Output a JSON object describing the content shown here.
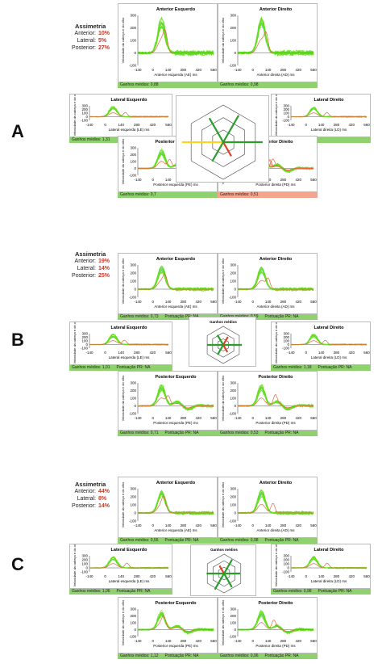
{
  "panels": [
    {
      "label": "A",
      "asym": {
        "title": "Assimetria",
        "rows": [
          {
            "label": "Anterior:",
            "value": "10%"
          },
          {
            "label": "Lateral:",
            "value": "5%"
          },
          {
            "label": "Posterior:",
            "value": "27%"
          }
        ]
      },
      "plots": {
        "ae": {
          "title": "Anterior Esquerdo",
          "xlabel": "Anterior esquerda (AE) ms",
          "footer": "Ganhos médios: 0,88",
          "footer2": ""
        },
        "ad": {
          "title": "Anterior Direito",
          "xlabel": "Anterior direita (AD) ms",
          "footer": "Ganhos médios: 0,98",
          "footer2": ""
        },
        "le": {
          "title": "Lateral Esquerdo",
          "xlabel": "Lateral esquerda (LE) ms",
          "footer": "Ganhos médios: 1,31",
          "footer2": ""
        },
        "ld": {
          "title": "Lateral Direito",
          "xlabel": "Lateral direita (LD) ms",
          "footer": "Ganhos médios: 1,25",
          "footer2": ""
        },
        "pe": {
          "title": "Posterior Esquerdo",
          "xlabel": "Posterior esquerda (PE) ms",
          "footer": "Ganhos médios: 0,7",
          "footer2": ""
        },
        "pd": {
          "title": "Posterior Direito",
          "xlabel": "Posterior direita (PD) ms",
          "footer": "Ganhos médios: 0,51",
          "footer2": ""
        }
      }
    },
    {
      "label": "B",
      "asym": {
        "title": "Assimetria",
        "rows": [
          {
            "label": "Anterior:",
            "value": "19%"
          },
          {
            "label": "Lateral:",
            "value": "14%"
          },
          {
            "label": "Posterior:",
            "value": "25%"
          }
        ]
      },
      "center_title": "Ganhos médios",
      "plots": {
        "ae": {
          "title": "Anterior Esquerdo",
          "xlabel": "Anterior esquerda (AE) ms",
          "footer": "Ganhos médios: 0,73",
          "footer2": "Pontuação PR: NA"
        },
        "ad": {
          "title": "Anterior Direito",
          "xlabel": "Anterior direita (AD) ms",
          "footer": "Ganhos médios: 0,59",
          "footer2": "Pontuação PR: NA"
        },
        "le": {
          "title": "Lateral Esquerdo",
          "xlabel": "Lateral esquerda (LE) ms",
          "footer": "Ganhos médios: 1,01",
          "footer2": "Pontuação PR: NA"
        },
        "ld": {
          "title": "Lateral Direito",
          "xlabel": "Lateral direita (LD) ms",
          "footer": "Ganhos médios: 1,18",
          "footer2": "Pontuação PR: NA"
        },
        "pe": {
          "title": "Posterior Esquerdo",
          "xlabel": "Posterior esquerda (PE) ms",
          "footer": "Ganhos médios: 0,71",
          "footer2": "Pontuação PR: NA"
        },
        "pd": {
          "title": "Posterior Direito",
          "xlabel": "Posterior direita (PD) ms",
          "footer": "Ganhos médios: 0,53",
          "footer2": "Pontuação PR: NA"
        }
      }
    },
    {
      "label": "C",
      "asym": {
        "title": "Assimetria",
        "rows": [
          {
            "label": "Anterior:",
            "value": "44%"
          },
          {
            "label": "Lateral:",
            "value": "8%"
          },
          {
            "label": "Posterior:",
            "value": "14%"
          }
        ]
      },
      "center_title": "Ganhos médios",
      "plots": {
        "ae": {
          "title": "Anterior Esquerdo",
          "xlabel": "Anterior esquerda (AE) ms",
          "footer": "Ganhos médios: 0,55",
          "footer2": "Pontuação PR: NA"
        },
        "ad": {
          "title": "Anterior Direito",
          "xlabel": "Anterior direita (AD) ms",
          "footer": "Ganhos médios: 0,98",
          "footer2": "Pontuação PR: NA"
        },
        "le": {
          "title": "Lateral Esquerdo",
          "xlabel": "Lateral esquerda (LE) ms",
          "footer": "Ganhos médios: 1,06",
          "footer2": "Pontuação PR: NA"
        },
        "ld": {
          "title": "Lateral Direito",
          "xlabel": "Lateral direita (LD) ms",
          "footer": "Ganhos médios: 0,98",
          "footer2": "Pontuação PR: NA"
        },
        "pe": {
          "title": "Posterior Esquerdo",
          "xlabel": "Posterior esquerda (PE) ms",
          "footer": "Ganhos médios: 1,12",
          "footer2": "Pontuação PR: NA"
        },
        "pd": {
          "title": "Posterior Direito",
          "xlabel": "Posterior direita (PD) ms",
          "footer": "Ganhos médios: 0,96",
          "footer2": "Pontuação PR: NA"
        }
      }
    }
  ],
  "axes": {
    "ylabel": "Velocidade da cabeça e do olho",
    "yticks": [
      "300",
      "200",
      "100",
      "0",
      "-100"
    ],
    "xticks": [
      "-140",
      "0",
      "140",
      "280",
      "420",
      "560"
    ]
  },
  "colors": {
    "trace": "#66dd22",
    "red_trace": "#e8663a",
    "blue_trace": "#66ccee",
    "gain_green": "#2a9d2a",
    "gain_red": "#d9432a",
    "gain_yellow": "#ffd21f",
    "footer_ok": "#8fd16e",
    "footer_bad": "#f4a58d"
  },
  "chart_data": {
    "type": "line",
    "xlabel": "ms",
    "ylabel": "Velocidade da cabeça e do olho",
    "xlim": [
      -140,
      560
    ],
    "ylim": [
      -100,
      300
    ],
    "mean_gains": {
      "A": {
        "AE": 0.88,
        "AD": 0.98,
        "LE": 1.31,
        "LD": 1.25,
        "PE": 0.7,
        "PD": 0.51
      },
      "B": {
        "AE": 0.73,
        "AD": 0.59,
        "LE": 1.01,
        "LD": 1.18,
        "PE": 0.71,
        "PD": 0.53
      },
      "C": {
        "AE": 0.55,
        "AD": 0.98,
        "LE": 1.06,
        "LD": 0.98,
        "PE": 1.12,
        "PD": 0.96
      }
    },
    "asymmetry_percent": {
      "A": {
        "Anterior": 10,
        "Lateral": 5,
        "Posterior": 27
      },
      "B": {
        "Anterior": 19,
        "Lateral": 14,
        "Posterior": 25
      },
      "C": {
        "Anterior": 44,
        "Lateral": 8,
        "Posterior": 14
      }
    }
  }
}
